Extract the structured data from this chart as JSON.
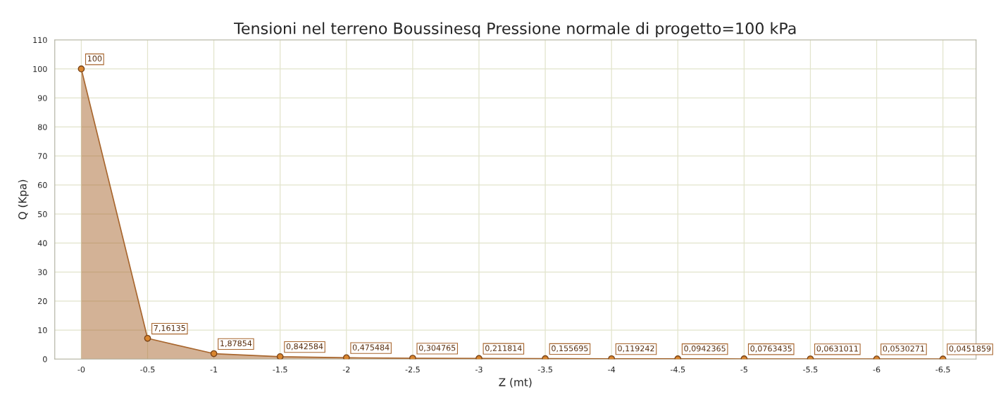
{
  "chart_data": {
    "type": "area",
    "title": "Tensioni nel terreno Boussinesq Pressione normale di progetto=100 kPa",
    "xlabel": "Z (mt)",
    "ylabel": "Q (Kpa)",
    "categories": [
      "-0",
      "-0.5",
      "-1",
      "-1.5",
      "-2",
      "-2.5",
      "-3",
      "-3.5",
      "-4",
      "-4.5",
      "-5",
      "-5.5",
      "-6",
      "-6.5"
    ],
    "series": [
      {
        "color": "#a8662e",
        "values": [
          100,
          7.16135,
          1.87854,
          0.842584,
          0.475484,
          0.304765,
          0.211814,
          0.155695,
          0.119242,
          0.0942365,
          0.0763435,
          0.0631011,
          0.0530271,
          0.0451859
        ],
        "value_labels": [
          "100",
          "7,16135",
          "1,87854",
          "0,842584",
          "0,475484",
          "0,304765",
          "0,211814",
          "0,155695",
          "0,119242",
          "0,0942365",
          "0,0763435",
          "0,0631011",
          "0,0530271",
          "0,0451859"
        ]
      }
    ],
    "ylim": [
      0,
      110
    ],
    "yticks": [
      0,
      10,
      20,
      30,
      40,
      50,
      60,
      70,
      80,
      90,
      100,
      110
    ],
    "grid": true,
    "marker": "circle",
    "line_style": "solid"
  }
}
